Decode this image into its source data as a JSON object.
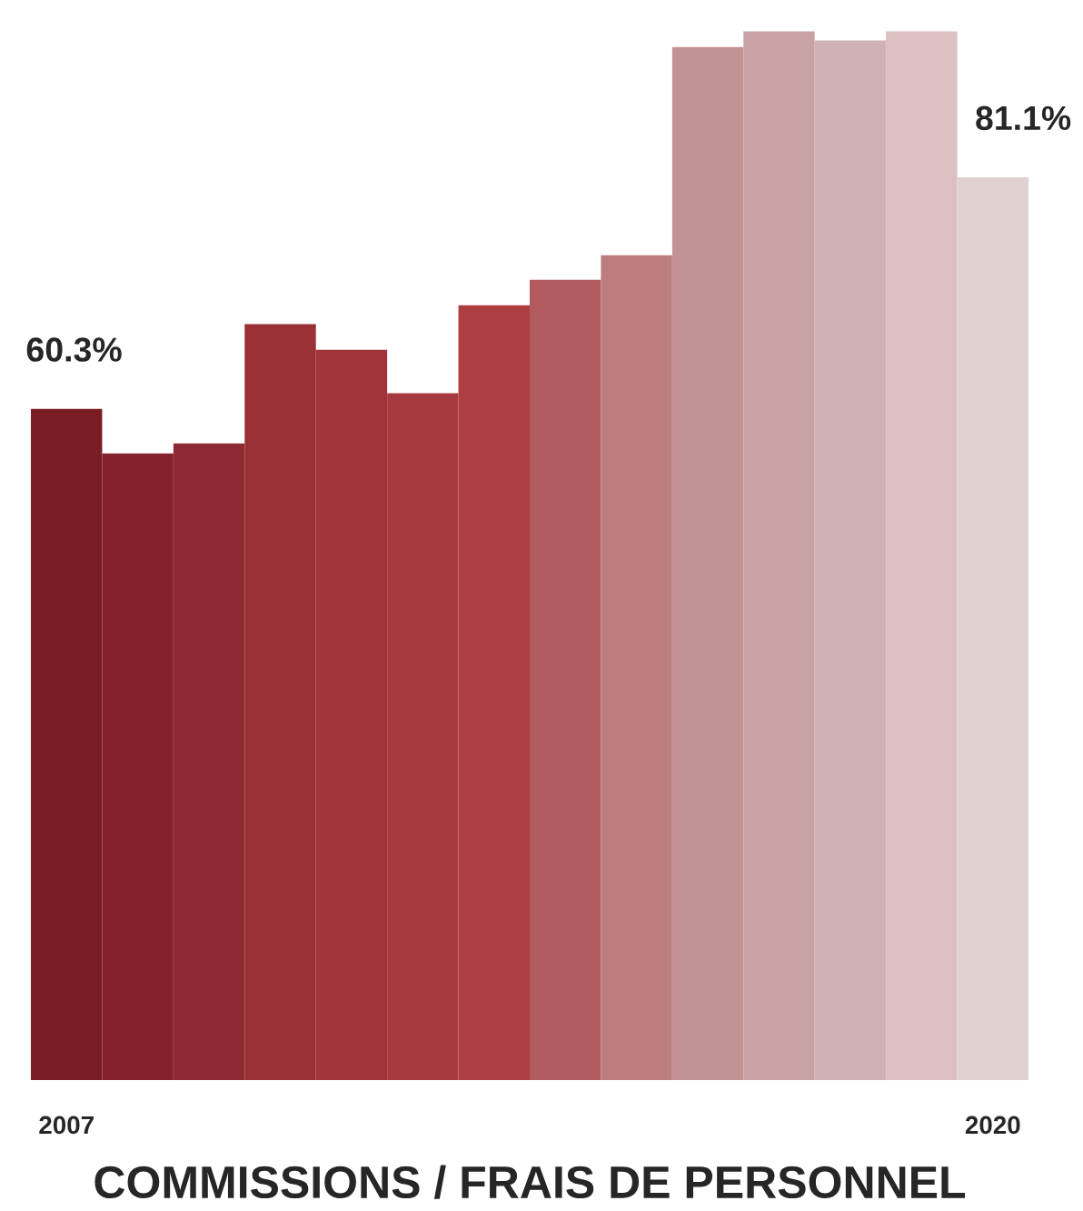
{
  "chart_data": {
    "type": "bar",
    "title": "COMMISSIONS / FRAIS DE PERSONNEL",
    "categories": [
      "2007",
      null,
      null,
      null,
      null,
      null,
      null,
      null,
      null,
      null,
      null,
      null,
      null,
      "2020"
    ],
    "values": [
      60.3,
      56.3,
      57.2,
      67.9,
      65.6,
      61.7,
      69.6,
      71.9,
      74.1,
      92.8,
      94.2,
      93.4,
      94.2,
      81.1
    ],
    "colors": [
      "#7a1c24",
      "#82212a",
      "#8e2a32",
      "#983035",
      "#a0343a",
      "#a63a3e",
      "#ad3e42",
      "#b25c60",
      "#bb7d7e",
      "#c39294",
      "#c9a3a4",
      "#d0b2b5",
      "#dcc0c1",
      "#e0d0cf"
    ],
    "value_labels": [
      "60.3%",
      null,
      null,
      null,
      null,
      null,
      null,
      null,
      null,
      null,
      null,
      null,
      null,
      "81.1%"
    ],
    "tick_labels": "x"
  }
}
